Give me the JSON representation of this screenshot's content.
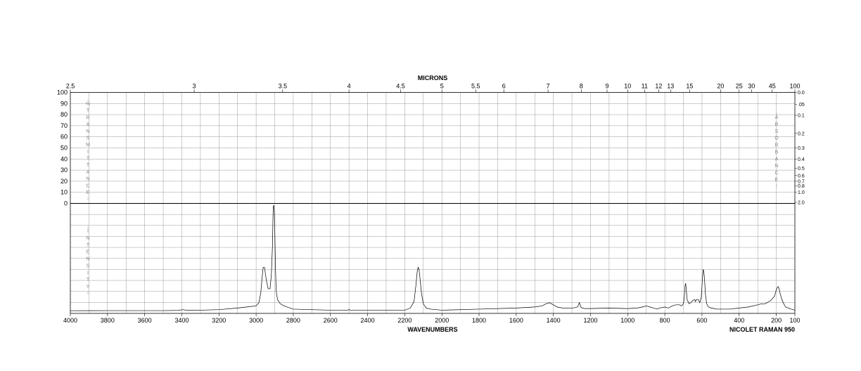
{
  "chart_data": {
    "type": "line",
    "title": "",
    "top_axis_title": "MICRONS",
    "xlabel": "WAVENUMBERS",
    "instrument": "NICOLET RAMAN 950",
    "left_upper_vertical_label": "% TRANSMITTANCE",
    "left_lower_vertical_label": "INTENSITY",
    "right_vertical_label": "ABSORBANCE",
    "xlim": [
      4000,
      100
    ],
    "x_ticks": [
      "4000",
      "3800",
      "3600",
      "3400",
      "3200",
      "3000",
      "2800",
      "2600",
      "2400",
      "2200",
      "2000",
      "1800",
      "1600",
      "1400",
      "1200",
      "1000",
      "800",
      "600",
      "400",
      "200",
      "100"
    ],
    "micron_ticks": [
      "2.5",
      "3",
      "3.5",
      "4",
      "4.5",
      "5",
      "5.5",
      "6",
      "7",
      "8",
      "9",
      "10",
      "11",
      "12",
      "13",
      "15",
      "20",
      "25",
      "30",
      "45",
      "100"
    ],
    "left_ticks": [
      "100",
      "90",
      "80",
      "70",
      "60",
      "50",
      "40",
      "30",
      "20",
      "10",
      "0"
    ],
    "right_ticks": [
      "0.0",
      ".05",
      "0.1",
      "0.2",
      "0.3",
      "0.4",
      "0.5",
      "0.6",
      "0.7",
      "0.8",
      "1.0",
      "2.0"
    ],
    "grid": true,
    "series": [
      {
        "x": [
          4000,
          3800,
          3500,
          3420,
          3395,
          3370,
          3300,
          3200,
          3100,
          3050,
          3000,
          2985,
          2975,
          2968,
          2962,
          2955,
          2945,
          2935,
          2925,
          2918,
          2912,
          2908,
          2905,
          2902,
          2899,
          2896,
          2892,
          2885,
          2870,
          2850,
          2800,
          2600,
          2505,
          2500,
          2495,
          2400,
          2250,
          2200,
          2170,
          2150,
          2140,
          2133,
          2128,
          2123,
          2118,
          2110,
          2100,
          2085,
          2060,
          2000,
          1800,
          1600,
          1500,
          1460,
          1440,
          1420,
          1400,
          1380,
          1350,
          1300,
          1270,
          1260,
          1252,
          1245,
          1230,
          1200,
          1100,
          1000,
          950,
          920,
          900,
          880,
          860,
          840,
          830,
          800,
          780,
          760,
          740,
          720,
          710,
          700,
          695,
          691,
          688,
          685,
          680,
          670,
          660,
          650,
          640,
          635,
          630,
          620,
          612,
          604,
          598,
          594,
          590,
          586,
          582,
          575,
          565,
          550,
          520,
          500,
          450,
          400,
          350,
          300,
          280,
          260,
          250,
          240,
          230,
          220,
          210,
          205,
          200,
          195,
          190,
          185,
          180,
          170,
          160,
          150,
          120,
          100
        ],
        "y": [
          1.5,
          1.6,
          1.6,
          1.8,
          2.5,
          1.8,
          2,
          2.5,
          4,
          5,
          6,
          9,
          18,
          32,
          42,
          42,
          30,
          22,
          22,
          35,
          62,
          98,
          100,
          95,
          72,
          42,
          20,
          12,
          8,
          6,
          3,
          2,
          2,
          2.8,
          2,
          2,
          2,
          2,
          4,
          10,
          25,
          38,
          42,
          40,
          32,
          18,
          8,
          4,
          3,
          2,
          3,
          4,
          5,
          6,
          8,
          9,
          7,
          5,
          4,
          3.8,
          5,
          9,
          5,
          4,
          3.5,
          3.5,
          4,
          3.5,
          4,
          5,
          6,
          5,
          4,
          3,
          4,
          5,
          4,
          6,
          7,
          7,
          6,
          8,
          14,
          25,
          27,
          22,
          12,
          8,
          9,
          11,
          12,
          10,
          12,
          12,
          9,
          14,
          30,
          40,
          38,
          30,
          18,
          8,
          5,
          4,
          3,
          3,
          3,
          4,
          5,
          7,
          8,
          8,
          9,
          10,
          11,
          13,
          15,
          18,
          21,
          23,
          24,
          22,
          18,
          12,
          8,
          5,
          3,
          2
        ]
      }
    ]
  }
}
